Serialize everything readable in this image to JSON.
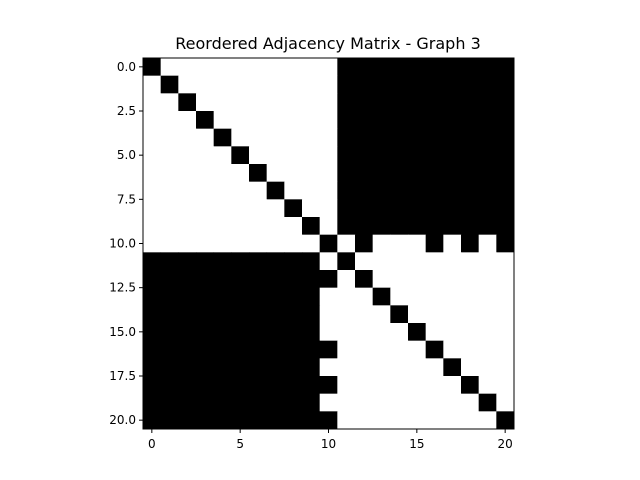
{
  "chart_data": {
    "type": "heatmap",
    "title": "Reordered Adjacency Matrix - Graph 3",
    "xlabel": "",
    "ylabel": "",
    "n": 21,
    "colormap": {
      "0": "#ffffff",
      "1": "#000000"
    },
    "x_ticks": [
      {
        "value": 0,
        "label": "0"
      },
      {
        "value": 5,
        "label": "5"
      },
      {
        "value": 10,
        "label": "10"
      },
      {
        "value": 15,
        "label": "15"
      },
      {
        "value": 20,
        "label": "20"
      }
    ],
    "y_ticks": [
      {
        "value": 0,
        "label": "0.0"
      },
      {
        "value": 2.5,
        "label": "2.5"
      },
      {
        "value": 5,
        "label": "5.0"
      },
      {
        "value": 7.5,
        "label": "7.5"
      },
      {
        "value": 10,
        "label": "10.0"
      },
      {
        "value": 12.5,
        "label": "12.5"
      },
      {
        "value": 15,
        "label": "15.0"
      },
      {
        "value": 17.5,
        "label": "17.5"
      },
      {
        "value": 20,
        "label": "20.0"
      }
    ],
    "matrix": [
      [
        1,
        0,
        0,
        0,
        0,
        0,
        0,
        0,
        0,
        0,
        0,
        1,
        1,
        1,
        1,
        1,
        1,
        1,
        1,
        1,
        1
      ],
      [
        0,
        1,
        0,
        0,
        0,
        0,
        0,
        0,
        0,
        0,
        0,
        1,
        1,
        1,
        1,
        1,
        1,
        1,
        1,
        1,
        1
      ],
      [
        0,
        0,
        1,
        0,
        0,
        0,
        0,
        0,
        0,
        0,
        0,
        1,
        1,
        1,
        1,
        1,
        1,
        1,
        1,
        1,
        1
      ],
      [
        0,
        0,
        0,
        1,
        0,
        0,
        0,
        0,
        0,
        0,
        0,
        1,
        1,
        1,
        1,
        1,
        1,
        1,
        1,
        1,
        1
      ],
      [
        0,
        0,
        0,
        0,
        1,
        0,
        0,
        0,
        0,
        0,
        0,
        1,
        1,
        1,
        1,
        1,
        1,
        1,
        1,
        1,
        1
      ],
      [
        0,
        0,
        0,
        0,
        0,
        1,
        0,
        0,
        0,
        0,
        0,
        1,
        1,
        1,
        1,
        1,
        1,
        1,
        1,
        1,
        1
      ],
      [
        0,
        0,
        0,
        0,
        0,
        0,
        1,
        0,
        0,
        0,
        0,
        1,
        1,
        1,
        1,
        1,
        1,
        1,
        1,
        1,
        1
      ],
      [
        0,
        0,
        0,
        0,
        0,
        0,
        0,
        1,
        0,
        0,
        0,
        1,
        1,
        1,
        1,
        1,
        1,
        1,
        1,
        1,
        1
      ],
      [
        0,
        0,
        0,
        0,
        0,
        0,
        0,
        0,
        1,
        0,
        0,
        1,
        1,
        1,
        1,
        1,
        1,
        1,
        1,
        1,
        1
      ],
      [
        0,
        0,
        0,
        0,
        0,
        0,
        0,
        0,
        0,
        1,
        0,
        1,
        1,
        1,
        1,
        1,
        1,
        1,
        1,
        1,
        1
      ],
      [
        0,
        0,
        0,
        0,
        0,
        0,
        0,
        0,
        0,
        0,
        1,
        0,
        1,
        0,
        0,
        0,
        1,
        0,
        1,
        0,
        1
      ],
      [
        1,
        1,
        1,
        1,
        1,
        1,
        1,
        1,
        1,
        1,
        0,
        1,
        0,
        0,
        0,
        0,
        0,
        0,
        0,
        0,
        0
      ],
      [
        1,
        1,
        1,
        1,
        1,
        1,
        1,
        1,
        1,
        1,
        1,
        0,
        1,
        0,
        0,
        0,
        0,
        0,
        0,
        0,
        0
      ],
      [
        1,
        1,
        1,
        1,
        1,
        1,
        1,
        1,
        1,
        1,
        0,
        0,
        0,
        1,
        0,
        0,
        0,
        0,
        0,
        0,
        0
      ],
      [
        1,
        1,
        1,
        1,
        1,
        1,
        1,
        1,
        1,
        1,
        0,
        0,
        0,
        0,
        1,
        0,
        0,
        0,
        0,
        0,
        0
      ],
      [
        1,
        1,
        1,
        1,
        1,
        1,
        1,
        1,
        1,
        1,
        0,
        0,
        0,
        0,
        0,
        1,
        0,
        0,
        0,
        0,
        0
      ],
      [
        1,
        1,
        1,
        1,
        1,
        1,
        1,
        1,
        1,
        1,
        1,
        0,
        0,
        0,
        0,
        0,
        1,
        0,
        0,
        0,
        0
      ],
      [
        1,
        1,
        1,
        1,
        1,
        1,
        1,
        1,
        1,
        1,
        0,
        0,
        0,
        0,
        0,
        0,
        0,
        1,
        0,
        0,
        0
      ],
      [
        1,
        1,
        1,
        1,
        1,
        1,
        1,
        1,
        1,
        1,
        1,
        0,
        0,
        0,
        0,
        0,
        0,
        0,
        1,
        0,
        0
      ],
      [
        1,
        1,
        1,
        1,
        1,
        1,
        1,
        1,
        1,
        1,
        0,
        0,
        0,
        0,
        0,
        0,
        0,
        0,
        0,
        1,
        0
      ],
      [
        1,
        1,
        1,
        1,
        1,
        1,
        1,
        1,
        1,
        1,
        1,
        0,
        0,
        0,
        0,
        0,
        0,
        0,
        0,
        0,
        1
      ]
    ]
  }
}
